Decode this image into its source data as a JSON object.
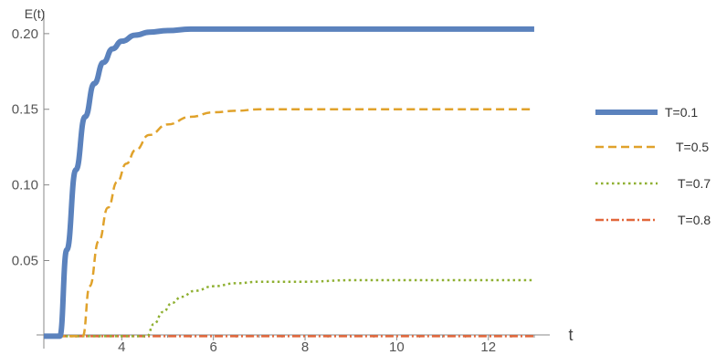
{
  "chart_data": {
    "type": "line",
    "ylabel": "E(t)",
    "xlabel": "t",
    "xlim": [
      2.3,
      13.3
    ],
    "ylim": [
      -0.004,
      0.215
    ],
    "x_ticks": [
      4,
      6,
      8,
      10,
      12
    ],
    "x_tick_labels": [
      "4",
      "6",
      "8",
      "10",
      "12"
    ],
    "y_ticks": [
      0.05,
      0.1,
      0.15,
      0.2
    ],
    "y_tick_labels": [
      "0.05",
      "0.10",
      "0.15",
      "0.20"
    ],
    "grid": false,
    "legend_position": "right",
    "series": [
      {
        "name": "T=0.1",
        "color": "#5b82bd",
        "style": "solid",
        "x": [
          2.3,
          2.65,
          2.8,
          3.0,
          3.2,
          3.4,
          3.6,
          3.8,
          4.0,
          4.3,
          4.6,
          5.0,
          5.5,
          6.0,
          7.0,
          8.0,
          10.0,
          13.0
        ],
        "y": [
          0.0,
          0.0,
          0.057,
          0.11,
          0.145,
          0.167,
          0.181,
          0.19,
          0.195,
          0.199,
          0.201,
          0.202,
          0.203,
          0.203,
          0.203,
          0.203,
          0.203,
          0.203
        ]
      },
      {
        "name": "T=0.5",
        "color": "#e0a22b",
        "style": "dashed",
        "x": [
          2.3,
          3.15,
          3.3,
          3.5,
          3.7,
          3.9,
          4.1,
          4.3,
          4.6,
          5.0,
          5.5,
          6.0,
          6.5,
          7.0,
          8.0,
          10.0,
          13.0
        ],
        "y": [
          0.0,
          0.0,
          0.033,
          0.063,
          0.085,
          0.102,
          0.114,
          0.123,
          0.133,
          0.14,
          0.145,
          0.148,
          0.149,
          0.15,
          0.15,
          0.15,
          0.15
        ]
      },
      {
        "name": "T=0.7",
        "color": "#8fb032",
        "style": "dotted",
        "x": [
          2.3,
          4.55,
          4.7,
          4.9,
          5.1,
          5.3,
          5.6,
          6.0,
          6.5,
          7.0,
          8.0,
          9.0,
          10.0,
          13.0
        ],
        "y": [
          0.0,
          0.0,
          0.008,
          0.016,
          0.022,
          0.026,
          0.03,
          0.033,
          0.035,
          0.036,
          0.036,
          0.037,
          0.037,
          0.037
        ]
      },
      {
        "name": "T=0.8",
        "color": "#e2673a",
        "style": "dashdot",
        "x": [
          2.3,
          13.0
        ],
        "y": [
          0.0,
          0.0
        ]
      }
    ]
  }
}
